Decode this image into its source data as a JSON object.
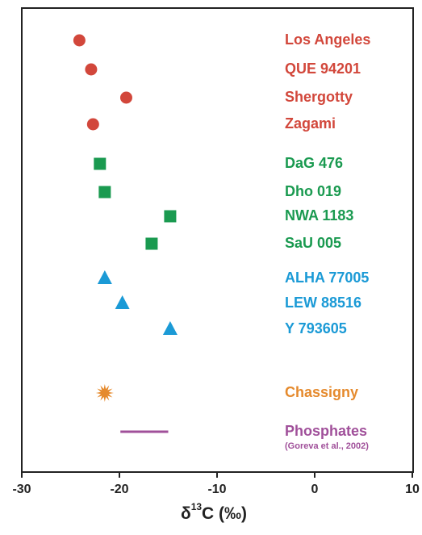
{
  "chart_data": {
    "type": "dot",
    "x_label": [
      "δ",
      "13",
      "C (‰)"
    ],
    "xlim": [
      -30,
      10
    ],
    "xticks": [
      -30,
      -20,
      -10,
      0,
      10
    ],
    "series": [
      {
        "color": "#d2473b",
        "marker": "circle",
        "categories": [
          "Los Angeles",
          "QUE 94201",
          "Shergotty",
          "Zagami"
        ],
        "values": [
          -24.1,
          -22.9,
          -19.3,
          -22.7
        ]
      },
      {
        "color": "#1a9a50",
        "marker": "square",
        "categories": [
          "DaG 476",
          "Dho 019",
          "NWA 1183",
          "SaU 005"
        ],
        "values": [
          -22.0,
          -21.5,
          -14.8,
          -16.7
        ]
      },
      {
        "color": "#1b9ad6",
        "marker": "triangle",
        "categories": [
          "ALHA 77005",
          "LEW 88516",
          "Y 793605"
        ],
        "values": [
          -21.5,
          -19.7,
          -14.8
        ]
      },
      {
        "color": "#e58a2d",
        "marker": "star",
        "categories": [
          "Chassigny"
        ],
        "values": [
          -21.5
        ]
      },
      {
        "color": "#a0509a",
        "marker": "range",
        "categories": [
          "Phosphates"
        ],
        "values": [
          [
            -19.9,
            -15.0
          ]
        ],
        "note": "(Goreva et al., 2002)"
      }
    ]
  }
}
